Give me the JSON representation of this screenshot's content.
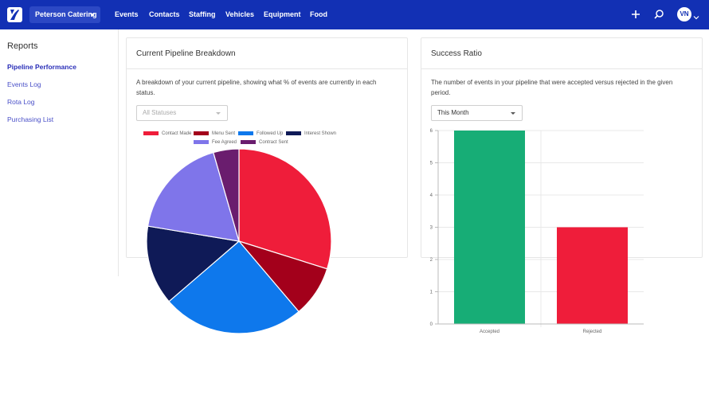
{
  "header": {
    "company": "Peterson Catering",
    "nav": [
      "Events",
      "Contacts",
      "Staffing",
      "Vehicles",
      "Equipment",
      "Food"
    ],
    "avatar_initials": "VN",
    "icons": [
      "logo-icon",
      "plus-icon",
      "search-icon",
      "chevron-down-icon"
    ]
  },
  "sidebar": {
    "title": "Reports",
    "items": [
      {
        "label": "Pipeline Performance",
        "active": true
      },
      {
        "label": "Events Log"
      },
      {
        "label": "Rota Log"
      },
      {
        "label": "Purchasing List"
      }
    ]
  },
  "pipeline_card": {
    "title": "Current Pipeline Breakdown",
    "description": "A breakdown of your current pipeline, showing what % of events are currently in each status.",
    "filter_placeholder": "All Statuses"
  },
  "ratio_card": {
    "title": "Success Ratio",
    "description": "The number of events in your pipeline that were accepted versus rejected in the given period.",
    "period": "This Month"
  },
  "colors": {
    "nav_bg": "#1230b4",
    "accent_link": "#4a50c8"
  },
  "chart_data": [
    {
      "type": "pie",
      "legend_position": "top",
      "labels": [
        "Contact Made",
        "Menu Sent",
        "Followed Up",
        "Interest Shown",
        "Fee Agreed",
        "Contract Sent"
      ],
      "values": [
        30,
        9,
        25,
        14,
        18,
        4.5
      ],
      "colors": [
        "#ef1d3a",
        "#a3001b",
        "#0e78ec",
        "#0f1a57",
        "#7f75ea",
        "#6a1d6e"
      ]
    },
    {
      "type": "bar",
      "categories": [
        "Accepted",
        "Rejected"
      ],
      "values": [
        6,
        3
      ],
      "colors": [
        "#17ad76",
        "#ef1d3a"
      ],
      "ylim": [
        0,
        6
      ],
      "yticks": [
        "0",
        "1",
        "2",
        "3",
        "4",
        "5",
        "6"
      ],
      "grid": true
    }
  ]
}
